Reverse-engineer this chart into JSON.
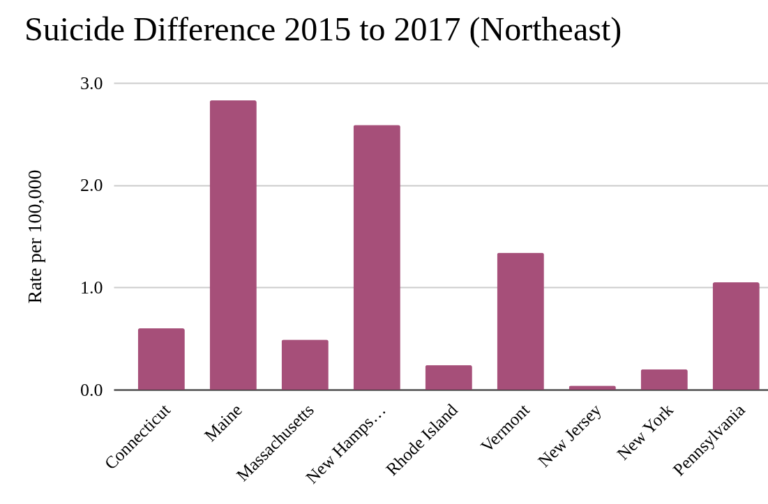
{
  "chart_data": {
    "type": "bar",
    "title": "Suicide Difference 2015 to 2017 (Northeast)",
    "ylabel": "Rate per 100,000",
    "categories": [
      "Connecticut",
      "Maine",
      "Massachusetts",
      "New Hamps…",
      "Rhode Island",
      "Vermont",
      "New Jersey",
      "New York",
      "Pennsylvania"
    ],
    "values": [
      0.6,
      2.83,
      0.49,
      2.59,
      0.24,
      1.34,
      0.04,
      0.2,
      1.05
    ],
    "color": "#a64f79",
    "ylim": [
      0,
      3
    ],
    "yticks": [
      {
        "value": 0,
        "label": "0.0"
      },
      {
        "value": 1,
        "label": "1.0"
      },
      {
        "value": 2,
        "label": "2.0"
      },
      {
        "value": 3,
        "label": "3.0"
      }
    ],
    "grid": "y"
  }
}
